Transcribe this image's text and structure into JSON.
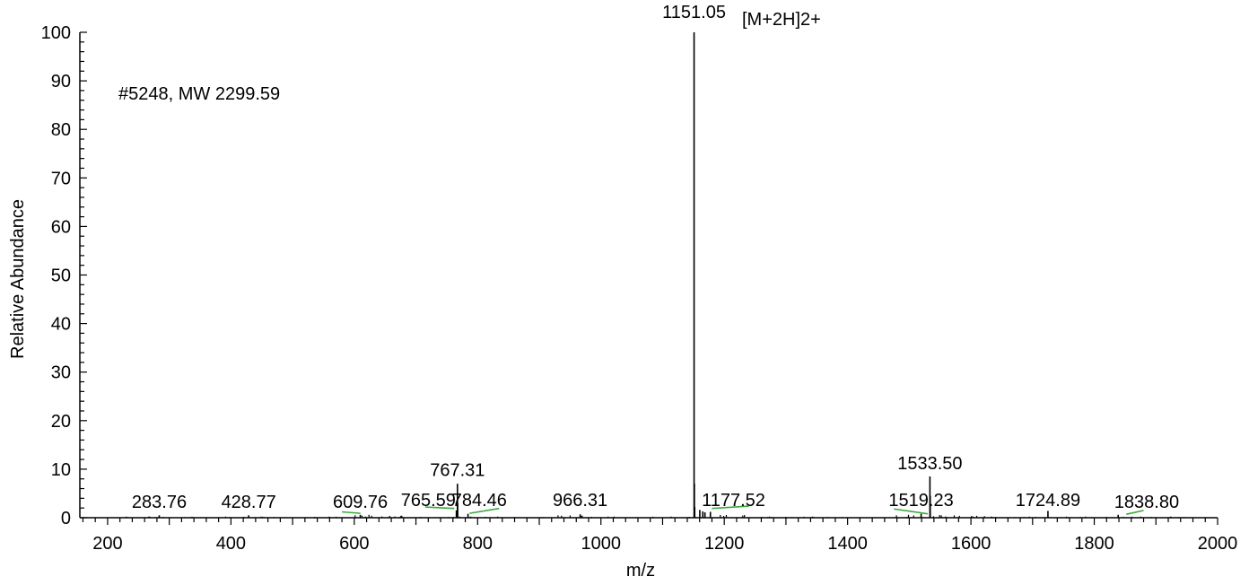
{
  "chart_data": {
    "type": "line",
    "title": "",
    "annotation": "#5248, MW 2299.59",
    "base_peak_note": "[M+2H]2+",
    "xlabel": "m/z",
    "ylabel": "Relative Abundance",
    "xlim": [
      155,
      2000
    ],
    "ylim": [
      0,
      100
    ],
    "x_ticks": [
      200,
      400,
      600,
      800,
      1000,
      1200,
      1400,
      1600,
      1800,
      2000
    ],
    "x_tick_labels": [
      "200",
      "400",
      "600",
      "800",
      "1000",
      "1200",
      "1400",
      "1600",
      "1800",
      "2000"
    ],
    "y_ticks": [
      0,
      10,
      20,
      30,
      40,
      50,
      60,
      70,
      80,
      90,
      100
    ],
    "y_tick_labels": [
      "0",
      "10",
      "20",
      "30",
      "40",
      "50",
      "60",
      "70",
      "80",
      "90",
      "100"
    ],
    "grid": false,
    "legend": "none",
    "line_color": "#000000",
    "callout_color": "#3aa83a",
    "peaks": [
      {
        "mz": 1151.05,
        "intensity": 100
      },
      {
        "mz": 1151.55,
        "intensity": 7
      },
      {
        "mz": 1152.05,
        "intensity": 2.2
      },
      {
        "mz": 767.31,
        "intensity": 7
      },
      {
        "mz": 767.65,
        "intensity": 3
      },
      {
        "mz": 765.59,
        "intensity": 1.5
      },
      {
        "mz": 784.46,
        "intensity": 0.8
      },
      {
        "mz": 1533.5,
        "intensity": 8.5
      },
      {
        "mz": 1534.0,
        "intensity": 4.5
      },
      {
        "mz": 1519.23,
        "intensity": 0.8
      },
      {
        "mz": 1724.89,
        "intensity": 1.4
      },
      {
        "mz": 1177.52,
        "intensity": 1.2
      },
      {
        "mz": 1160.3,
        "intensity": 1.6
      },
      {
        "mz": 1165.2,
        "intensity": 1.3
      },
      {
        "mz": 1168.7,
        "intensity": 1.1
      },
      {
        "mz": 1838.8,
        "intensity": 0.6
      },
      {
        "mz": 966.31,
        "intensity": 0.7
      },
      {
        "mz": 609.76,
        "intensity": 0.6
      },
      {
        "mz": 428.77,
        "intensity": 0.5
      },
      {
        "mz": 283.76,
        "intensity": 0.5
      }
    ],
    "peak_labels": [
      {
        "text": "1151.05",
        "mz": 1151.05,
        "y": 103
      },
      {
        "text": "767.31",
        "mz": 767.31,
        "y": 8.6
      },
      {
        "text": "1533.50",
        "mz": 1533.5,
        "y": 10
      },
      {
        "text": "765.59",
        "mz": 720,
        "y": 2.4
      },
      {
        "text": "784.46",
        "mz": 803,
        "y": 2.4
      },
      {
        "text": "966.31",
        "mz": 966.31,
        "y": 2.4
      },
      {
        "text": "1177.52",
        "mz": 1215,
        "y": 2.4
      },
      {
        "text": "1519.23",
        "mz": 1519.23,
        "y": 2.4
      },
      {
        "text": "1724.89",
        "mz": 1724.89,
        "y": 2.4
      },
      {
        "text": "1838.80",
        "mz": 1885,
        "y": 2.0
      },
      {
        "text": "609.76",
        "mz": 609.76,
        "y": 2.0
      },
      {
        "text": "428.77",
        "mz": 428.77,
        "y": 2.0
      },
      {
        "text": "283.76",
        "mz": 283.76,
        "y": 2.0
      }
    ]
  }
}
